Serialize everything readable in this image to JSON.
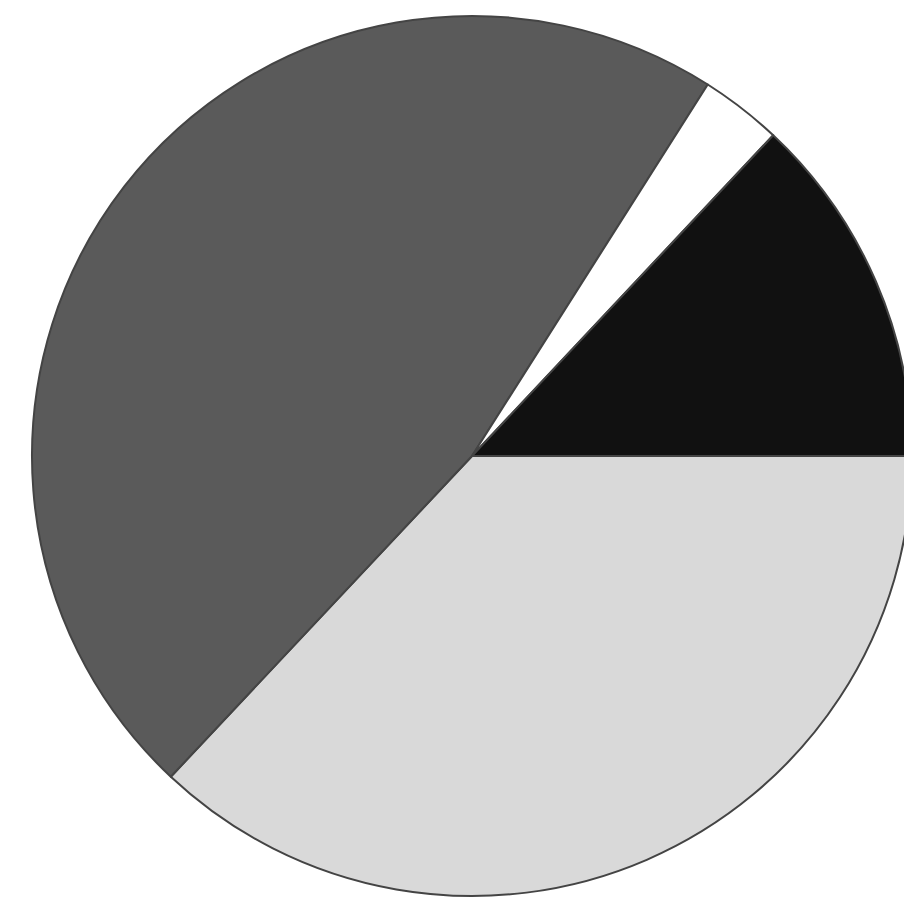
{
  "chart_data": {
    "type": "pie",
    "categories": [
      null,
      null,
      null,
      null
    ],
    "values": [
      37,
      47,
      3,
      13
    ],
    "colors": [
      "#d9d9d9",
      "#5a5a5a",
      "#ffffff",
      "#111111"
    ]
  }
}
